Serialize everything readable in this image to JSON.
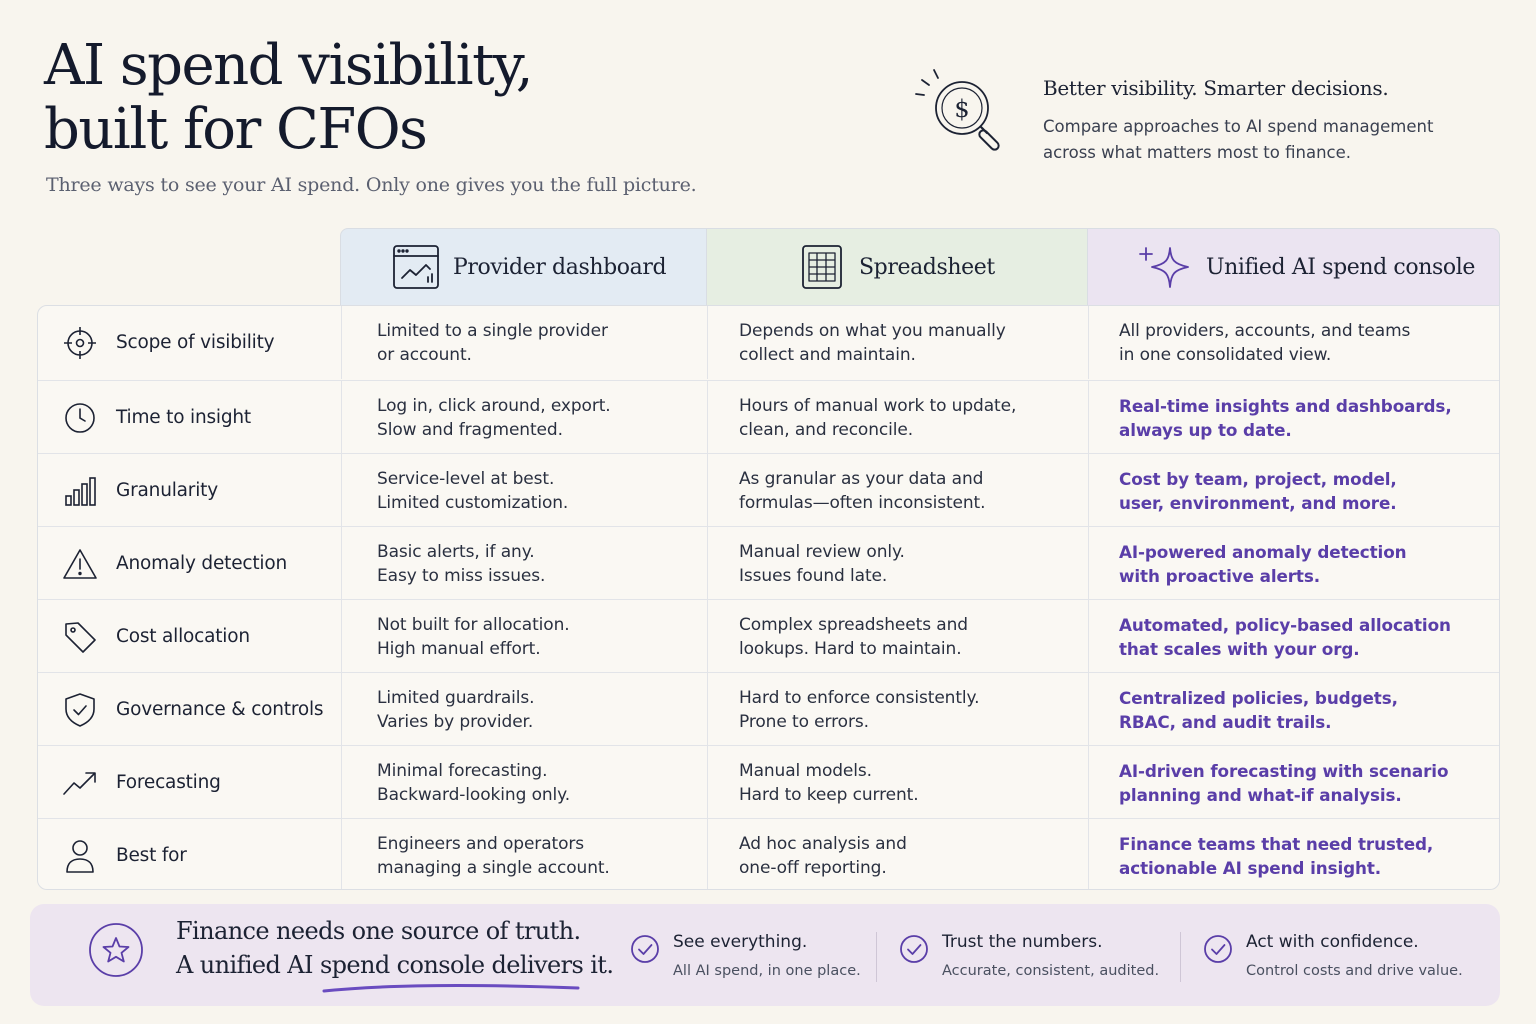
{
  "header": {
    "title_line1": "AI spend visibility,",
    "title_line2": "built for CFOs",
    "subtitle": "Three ways to see your AI spend. Only one gives you the full picture.",
    "tagline_title": "Better visibility. Smarter decisions.",
    "tagline_desc": "Compare approaches to AI spend management across what matters most to finance.",
    "hero_icon": "dollar-magnifier-icon"
  },
  "columns": [
    {
      "label": "Provider dashboard",
      "icon": "browser-chart-icon",
      "color": "#e3ebf3"
    },
    {
      "label": "Spreadsheet",
      "icon": "spreadsheet-icon",
      "color": "#e6eee2"
    },
    {
      "label": "Unified AI spend console",
      "icon": "sparkle-icon",
      "color": "#ebe4f1"
    }
  ],
  "rows": [
    {
      "feature": "Scope of visibility",
      "icon": "crosshair-icon",
      "provider": "Limited to a single provider\nor account.",
      "spreadsheet": "Depends on what you manually\ncollect and maintain.",
      "unified": "All providers, accounts, and teams\nin one consolidated view."
    },
    {
      "feature": "Time to insight",
      "icon": "clock-icon",
      "provider": "Log in, click around, export.\nSlow and fragmented.",
      "spreadsheet": "Hours of manual work to update,\nclean, and reconcile.",
      "unified": "Real-time insights and dashboards,\nalways up to date."
    },
    {
      "feature": "Granularity",
      "icon": "bar-chart-icon",
      "provider": "Service-level at best.\nLimited customization.",
      "spreadsheet": "As granular as your data and\nformulas—often inconsistent.",
      "unified": "Cost by team, project, model,\nuser, environment, and more."
    },
    {
      "feature": "Anomaly detection",
      "icon": "warning-icon",
      "provider": "Basic alerts, if any.\nEasy to miss issues.",
      "spreadsheet": "Manual review only.\nIssues found late.",
      "unified": "AI-powered anomaly detection\nwith proactive alerts."
    },
    {
      "feature": "Cost allocation",
      "icon": "tag-icon",
      "provider": "Not built for allocation.\nHigh manual effort.",
      "spreadsheet": "Complex spreadsheets and\nlookups. Hard to maintain.",
      "unified": "Automated, policy-based allocation\nthat scales with your org."
    },
    {
      "feature": "Governance & controls",
      "icon": "shield-check-icon",
      "provider": "Limited guardrails.\nVaries by provider.",
      "spreadsheet": "Hard to enforce consistently.\nProne to errors.",
      "unified": "Centralized policies, budgets,\nRBAC, and audit trails."
    },
    {
      "feature": "Forecasting",
      "icon": "trend-up-icon",
      "provider": "Minimal forecasting.\nBackward-looking only.",
      "spreadsheet": "Manual models.\nHard to keep current.",
      "unified": "AI-driven forecasting with scenario\nplanning and what-if analysis."
    },
    {
      "feature": "Best for",
      "icon": "user-icon",
      "provider": "Engineers and operators\nmanaging a single account.",
      "spreadsheet": "Ad hoc analysis and\none-off reporting.",
      "unified": "Finance teams that need trusted,\nactionable AI spend insight."
    }
  ],
  "footer": {
    "line1": "Finance needs one source of truth.",
    "line2": "A unified AI spend console delivers it.",
    "points": [
      {
        "title": "See everything.",
        "sub": "All AI spend, in one place."
      },
      {
        "title": "Trust the numbers.",
        "sub": "Accurate, consistent, audited."
      },
      {
        "title": "Act with confidence.",
        "sub": "Control costs and drive value."
      }
    ]
  },
  "colors": {
    "accent": "#5a3ea8",
    "ink": "#1c2233",
    "background": "#f8f5ee"
  }
}
